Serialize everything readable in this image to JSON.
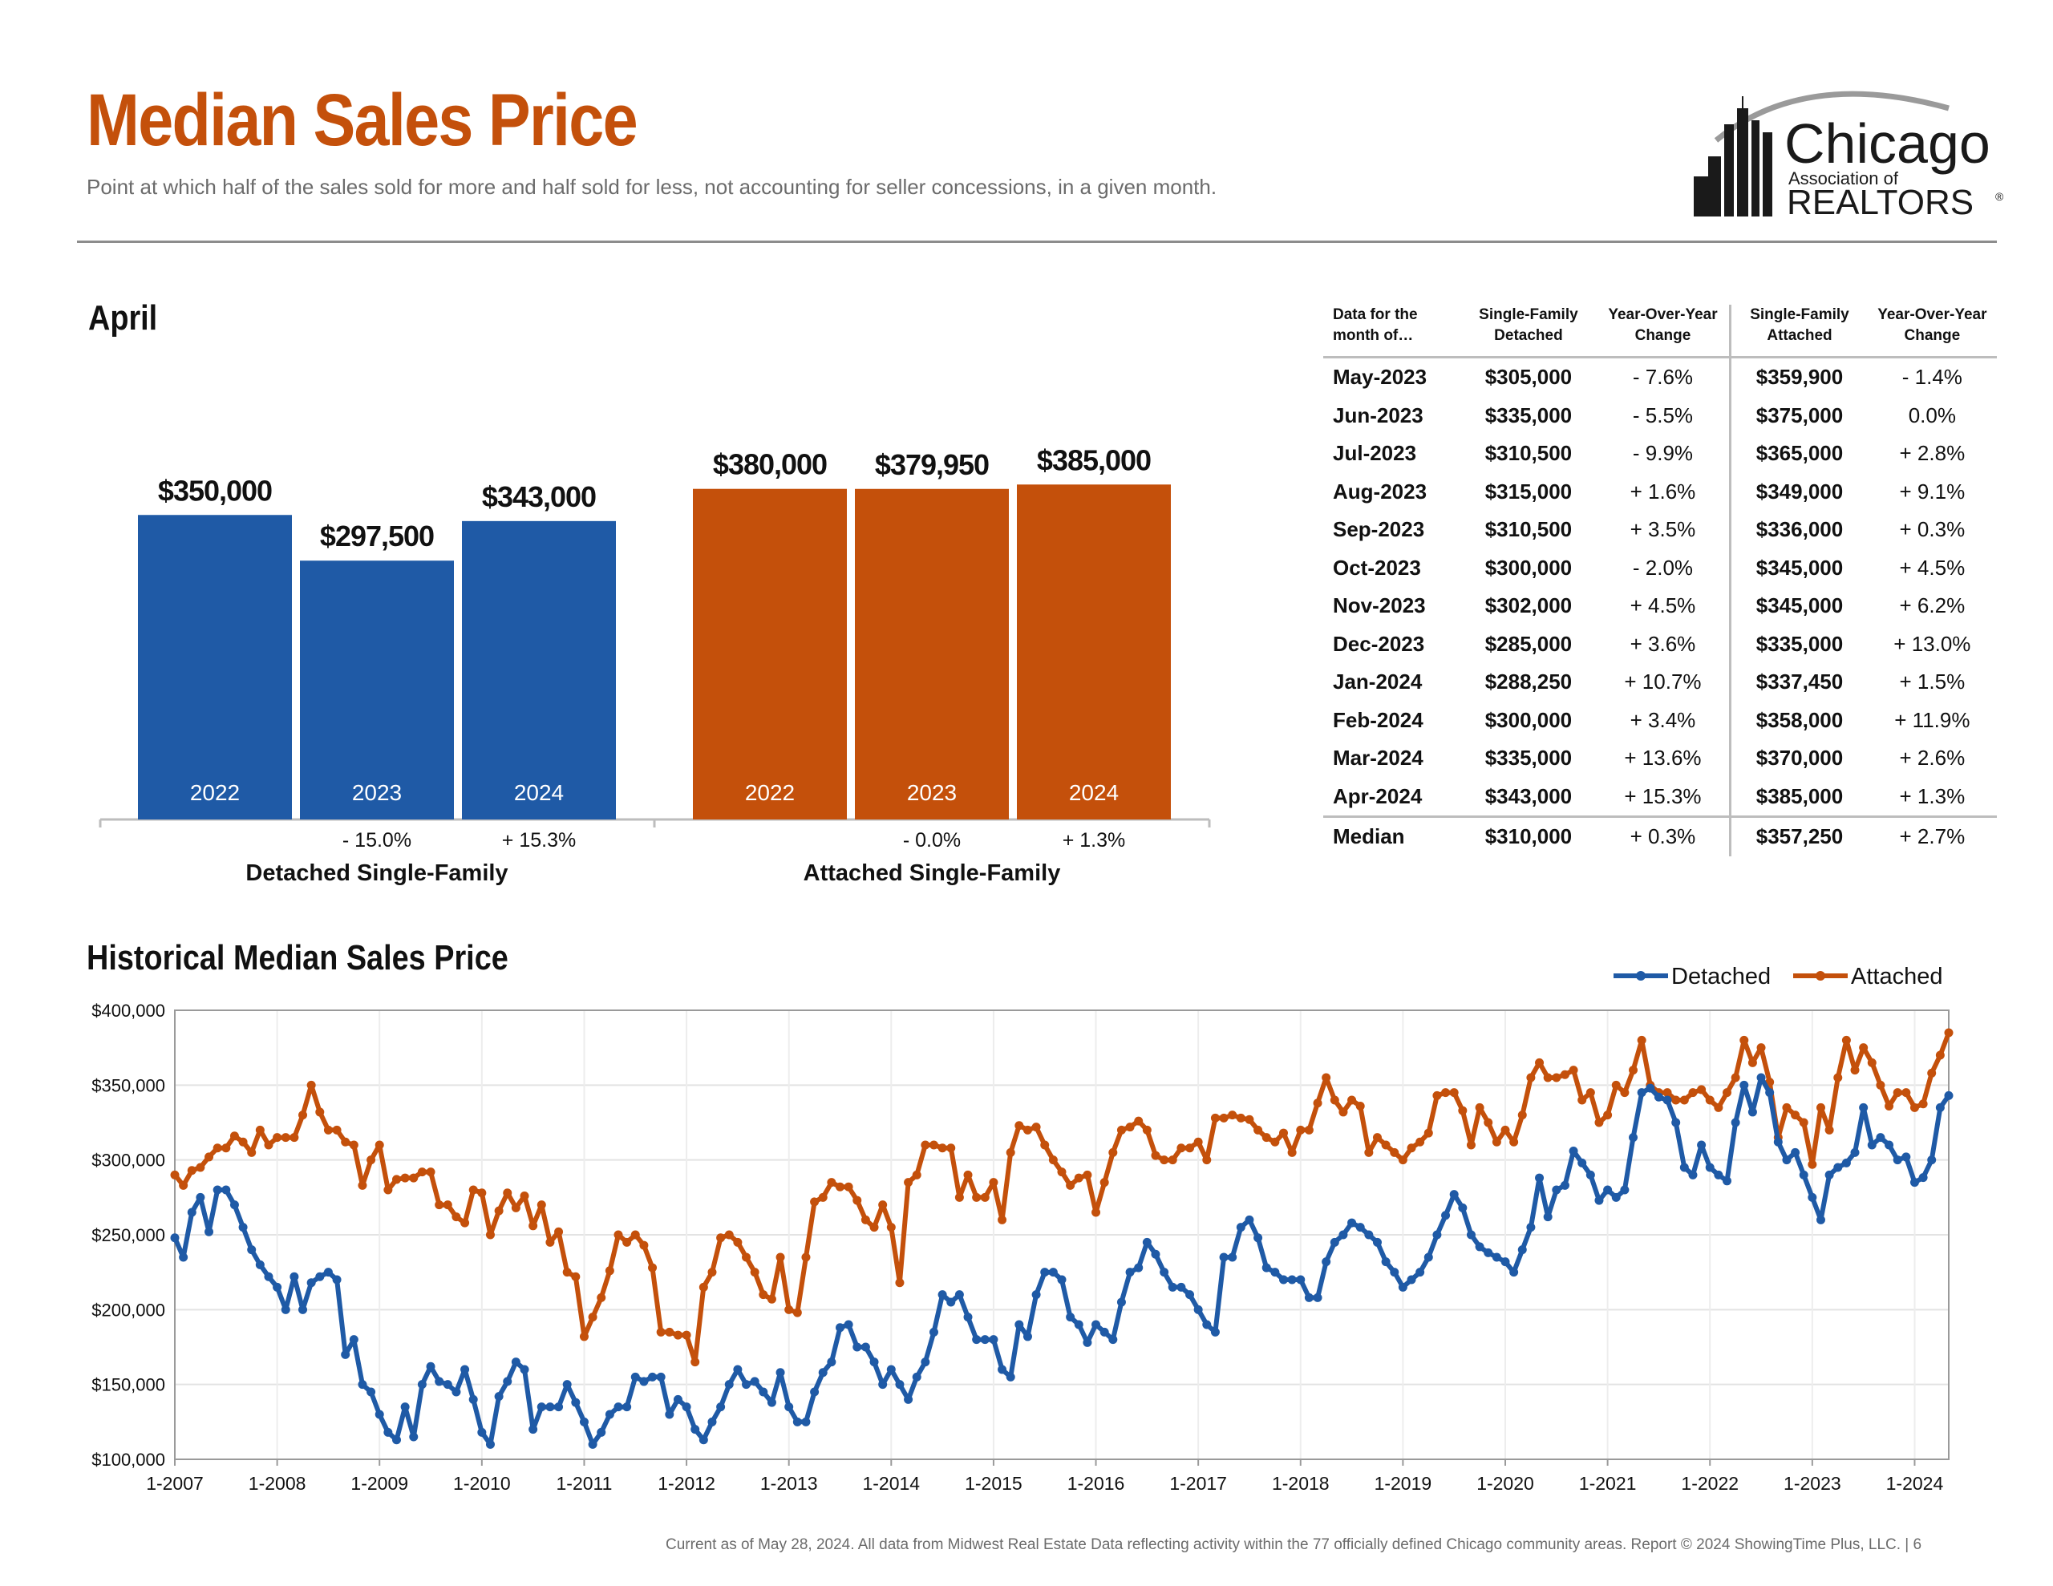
{
  "header": {
    "title": "Median Sales Price",
    "subtitle": "Point at which half of the sales sold for more and half sold for less, not accounting for seller concessions, in a given month."
  },
  "logo": {
    "name": "Chicago Association of REALTORS",
    "line1": "Chicago",
    "line2": "Association of",
    "line3": "REALTORS",
    "mark": "®"
  },
  "colors": {
    "detached": "#1f5aa6",
    "attached": "#c4500b",
    "title": "#c4500b"
  },
  "month_section": {
    "heading": "April"
  },
  "table": {
    "headers": [
      "Data for the month of…",
      "Single-Family Detached",
      "Year-Over-Year Change",
      "Single-Family Attached",
      "Year-Over-Year Change"
    ],
    "rows": [
      [
        "May-2023",
        "$305,000",
        "- 7.6%",
        "$359,900",
        "- 1.4%"
      ],
      [
        "Jun-2023",
        "$335,000",
        "- 5.5%",
        "$375,000",
        "0.0%"
      ],
      [
        "Jul-2023",
        "$310,500",
        "- 9.9%",
        "$365,000",
        "+ 2.8%"
      ],
      [
        "Aug-2023",
        "$315,000",
        "+ 1.6%",
        "$349,000",
        "+ 9.1%"
      ],
      [
        "Sep-2023",
        "$310,500",
        "+ 3.5%",
        "$336,000",
        "+ 0.3%"
      ],
      [
        "Oct-2023",
        "$300,000",
        "- 2.0%",
        "$345,000",
        "+ 4.5%"
      ],
      [
        "Nov-2023",
        "$302,000",
        "+ 4.5%",
        "$345,000",
        "+ 6.2%"
      ],
      [
        "Dec-2023",
        "$285,000",
        "+ 3.6%",
        "$335,000",
        "+ 13.0%"
      ],
      [
        "Jan-2024",
        "$288,250",
        "+ 10.7%",
        "$337,450",
        "+ 1.5%"
      ],
      [
        "Feb-2024",
        "$300,000",
        "+ 3.4%",
        "$358,000",
        "+ 11.9%"
      ],
      [
        "Mar-2024",
        "$335,000",
        "+ 13.6%",
        "$370,000",
        "+ 2.6%"
      ],
      [
        "Apr-2024",
        "$343,000",
        "+ 15.3%",
        "$385,000",
        "+ 1.3%"
      ]
    ],
    "median": [
      "Median",
      "$310,000",
      "+ 0.3%",
      "$357,250",
      "+ 2.7%"
    ]
  },
  "chart_data": [
    {
      "type": "bar",
      "ylim": [
        0,
        400000
      ],
      "groups": [
        {
          "name": "Detached Single-Family",
          "series": "detached",
          "bars": [
            {
              "category": "2022",
              "value": 350000,
              "label": "$350,000",
              "change": ""
            },
            {
              "category": "2023",
              "value": 297500,
              "label": "$297,500",
              "change": "- 15.0%"
            },
            {
              "category": "2024",
              "value": 343000,
              "label": "$343,000",
              "change": "+ 15.3%"
            }
          ]
        },
        {
          "name": "Attached Single-Family",
          "series": "attached",
          "bars": [
            {
              "category": "2022",
              "value": 380000,
              "label": "$380,000",
              "change": ""
            },
            {
              "category": "2023",
              "value": 379950,
              "label": "$379,950",
              "change": "- 0.0%"
            },
            {
              "category": "2024",
              "value": 385000,
              "label": "$385,000",
              "change": "+ 1.3%"
            }
          ]
        }
      ]
    },
    {
      "type": "line",
      "title": "Historical Median Sales Price",
      "x_start": "1-2007",
      "x_end": "4-2024",
      "ylim": [
        100000,
        400000
      ],
      "yticks": [
        "$100,000",
        "$150,000",
        "$200,000",
        "$250,000",
        "$300,000",
        "$350,000",
        "$400,000"
      ],
      "xticks": [
        "1-2007",
        "1-2008",
        "1-2009",
        "1-2010",
        "1-2011",
        "1-2012",
        "1-2013",
        "1-2014",
        "1-2015",
        "1-2016",
        "1-2017",
        "1-2018",
        "1-2019",
        "1-2020",
        "1-2021",
        "1-2022",
        "1-2023",
        "1-2024"
      ],
      "legend": "top-right",
      "grid": true,
      "series": [
        {
          "name": "Detached",
          "values": [
            248000,
            235000,
            265000,
            275000,
            252000,
            280000,
            280000,
            270000,
            255000,
            240000,
            230000,
            222000,
            215000,
            200000,
            222000,
            200000,
            218000,
            222000,
            225000,
            220000,
            170000,
            180000,
            150000,
            145000,
            130000,
            118000,
            113000,
            135000,
            115000,
            150000,
            162000,
            152000,
            150000,
            145000,
            160000,
            140000,
            118000,
            110000,
            142000,
            152000,
            165000,
            160000,
            120000,
            135000,
            135000,
            135000,
            150000,
            138000,
            125000,
            110000,
            118000,
            130000,
            135000,
            135000,
            155000,
            152000,
            155000,
            155000,
            130000,
            140000,
            135000,
            120000,
            113000,
            125000,
            135000,
            150000,
            160000,
            150000,
            152000,
            145000,
            138000,
            158000,
            135000,
            125000,
            125000,
            145000,
            158000,
            165000,
            188000,
            190000,
            175000,
            175000,
            165000,
            150000,
            160000,
            150000,
            140000,
            155000,
            165000,
            185000,
            210000,
            205000,
            210000,
            195000,
            180000,
            180000,
            180000,
            160000,
            155000,
            190000,
            182000,
            210000,
            225000,
            225000,
            220000,
            195000,
            190000,
            178000,
            190000,
            185000,
            180000,
            205000,
            225000,
            228000,
            245000,
            237000,
            225000,
            215000,
            215000,
            210000,
            200000,
            190000,
            185000,
            235000,
            235000,
            255000,
            260000,
            248000,
            228000,
            225000,
            220000,
            220000,
            220000,
            208000,
            208000,
            232000,
            245000,
            250000,
            258000,
            255000,
            250000,
            245000,
            232000,
            225000,
            215000,
            220000,
            225000,
            235000,
            250000,
            263000,
            277000,
            268000,
            250000,
            242000,
            238000,
            235000,
            232000,
            225000,
            240000,
            255000,
            288000,
            262000,
            280000,
            283000,
            306000,
            298000,
            290000,
            273000,
            280000,
            275000,
            280000,
            315000,
            345000,
            348000,
            342000,
            340000,
            325000,
            295000,
            290000,
            310000,
            295000,
            290000,
            286000,
            325000,
            350000,
            332000,
            355000,
            345000,
            312000,
            300000,
            305000,
            290000,
            275000,
            260000,
            290000,
            295000,
            298000,
            305000,
            335000,
            310000,
            315000,
            310000,
            300000,
            302000,
            285000,
            288250,
            300000,
            335000,
            343000
          ]
        },
        {
          "name": "Attached",
          "values": [
            290000,
            283000,
            293000,
            295000,
            302000,
            308000,
            308000,
            316000,
            312000,
            305000,
            320000,
            310000,
            315000,
            315000,
            315000,
            330000,
            350000,
            332000,
            320000,
            320000,
            312000,
            310000,
            283000,
            300000,
            310000,
            280000,
            287000,
            288000,
            288000,
            292000,
            292000,
            270000,
            270000,
            262000,
            258000,
            280000,
            278000,
            250000,
            266000,
            278000,
            268000,
            276000,
            256000,
            270000,
            245000,
            252000,
            225000,
            222000,
            182000,
            195000,
            208000,
            226000,
            250000,
            245000,
            250000,
            243000,
            228000,
            185000,
            185000,
            183000,
            183000,
            165000,
            215000,
            225000,
            248000,
            250000,
            245000,
            235000,
            225000,
            210000,
            207000,
            235000,
            200000,
            198000,
            235000,
            272000,
            275000,
            285000,
            282000,
            282000,
            273000,
            260000,
            255000,
            270000,
            255000,
            218000,
            285000,
            290000,
            310000,
            310000,
            308000,
            308000,
            275000,
            290000,
            275000,
            275000,
            285000,
            260000,
            305000,
            323000,
            320000,
            322000,
            310000,
            300000,
            292000,
            283000,
            288000,
            290000,
            265000,
            285000,
            305000,
            320000,
            322000,
            326000,
            320000,
            303000,
            300000,
            300000,
            308000,
            308000,
            312000,
            300000,
            328000,
            328000,
            330000,
            328000,
            327000,
            320000,
            315000,
            312000,
            318000,
            305000,
            320000,
            320000,
            338000,
            355000,
            340000,
            332000,
            340000,
            336000,
            305000,
            315000,
            310000,
            305000,
            300000,
            308000,
            312000,
            318000,
            343000,
            345000,
            345000,
            333000,
            310000,
            335000,
            325000,
            312000,
            320000,
            312000,
            330000,
            355000,
            365000,
            355000,
            355000,
            357000,
            360000,
            340000,
            345000,
            325000,
            330000,
            350000,
            345000,
            360000,
            380000,
            350000,
            345000,
            345000,
            340000,
            340000,
            345000,
            347000,
            340000,
            335000,
            345000,
            355000,
            380000,
            365000,
            375000,
            352000,
            315000,
            335000,
            330000,
            325000,
            297000,
            335000,
            320000,
            355000,
            380000,
            360000,
            375000,
            365000,
            350000,
            336000,
            345000,
            345000,
            335000,
            337450,
            358000,
            370000,
            385000
          ]
        }
      ]
    }
  ],
  "footer": "Current as of May 28, 2024.  All data from Midwest Real Estate Data reflecting activity within the 77 officially defined Chicago community areas. Report © 2024 ShowingTime Plus, LLC.  |  6"
}
